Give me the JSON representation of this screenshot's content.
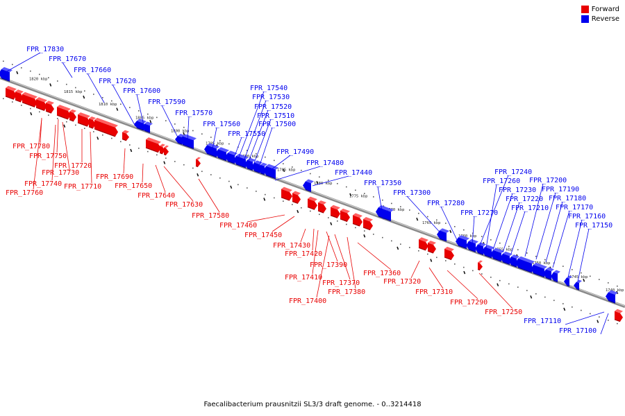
{
  "legend": {
    "forward_label": "Forward",
    "reverse_label": "Reverse",
    "forward_color": "#e80000",
    "reverse_color": "#0000ee"
  },
  "caption": "Faecalibacterium prausnitzii SL3/3 draft genome. - 0..3214418",
  "ruler": {
    "tick_labels": [
      "1820 kbp",
      "1815 kbp",
      "1810 kbp",
      "1805 kbp",
      "1800 kbp",
      "1795 kbp",
      "1790 kbp",
      "1785 kbp",
      "1780 kbp",
      "1775 kbp",
      "1770 kbp",
      "1765 kbp",
      "1760 kbp",
      "1755 kbp",
      "1750 kbp",
      "1745 kbp",
      "1740 kbp"
    ]
  },
  "reverse_genes": [
    "FPR_17830",
    "FPR_17670",
    "FPR_17660",
    "FPR_17620",
    "FPR_17600",
    "FPR_17590",
    "FPR_17570",
    "FPR_17560",
    "FPR_17550",
    "FPR_17540",
    "FPR_17530",
    "FPR_17520",
    "FPR_17510",
    "FPR_17500",
    "FPR_17490",
    "FPR_17480",
    "FPR_17440",
    "FPR_17350",
    "FPR_17300",
    "FPR_17280",
    "FPR_17270",
    "FPR_17260",
    "FPR_17240",
    "FPR_17230",
    "FPR_17220",
    "FPR_17210",
    "FPR_17200",
    "FPR_17190",
    "FPR_17180",
    "FPR_17170",
    "FPR_17160",
    "FPR_17150",
    "FPR_17110",
    "FPR_17100"
  ],
  "forward_genes": [
    "FPR_17780",
    "FPR_17750",
    "FPR_17730",
    "FPR_17720",
    "FPR_17740",
    "FPR_17760",
    "FPR_17710",
    "FPR_17690",
    "FPR_17650",
    "FPR_17640",
    "FPR_17630",
    "FPR_17580",
    "FPR_17460",
    "FPR_17450",
    "FPR_17430",
    "FPR_17420",
    "FPR_17390",
    "FPR_17410",
    "FPR_17370",
    "FPR_17380",
    "FPR_17400",
    "FPR_17360",
    "FPR_17320",
    "FPR_17310",
    "FPR_17290",
    "FPR_17250"
  ]
}
